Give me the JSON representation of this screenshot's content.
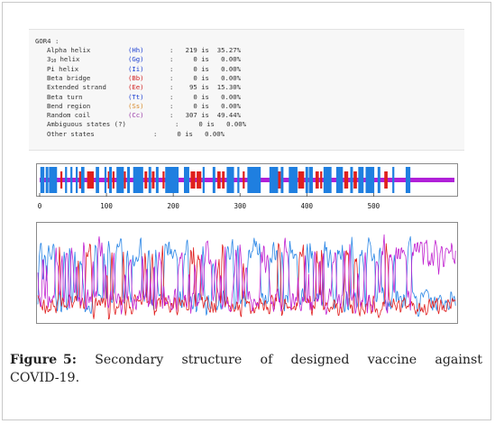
{
  "gor": {
    "title": "GOR4 :",
    "rows": [
      {
        "name": "Alpha helix",
        "code": "(Hh)",
        "stats": ":   219 is  35.27%"
      },
      {
        "name": "helix",
        "code": "(Gg)",
        "stats": ":     0 is   0.00%"
      },
      {
        "name": "Pi helix",
        "code": "(Ii)",
        "stats": ":     0 is   0.00%"
      },
      {
        "name": "Beta bridge",
        "code": "(Bb)",
        "stats": ":     0 is   0.00%"
      },
      {
        "name": "Extended strand",
        "code": "(Ee)",
        "stats": ":    95 is  15.30%"
      },
      {
        "name": "Beta turn",
        "code": "(Tt)",
        "stats": ":     0 is   0.00%"
      },
      {
        "name": "Bend region",
        "code": "(Ss)",
        "stats": ":     0 is   0.00%"
      },
      {
        "name": "Random coil",
        "code": "(Cc)",
        "stats": ":   307 is  49.44%"
      },
      {
        "name": "Ambiguous states (?)",
        "code": "",
        "stats": ":     0 is   0.00%"
      },
      {
        "name": "Other states",
        "code": "",
        "stats": ":     0 is   0.00%"
      }
    ],
    "helix310_prefix": "3",
    "helix310_sub": "10"
  },
  "track": {
    "ticks": [
      "0",
      "100",
      "200",
      "300",
      "400",
      "500"
    ],
    "tick_values": [
      0,
      100,
      200,
      300,
      400,
      500
    ],
    "length": 621,
    "helix_segments": [
      [
        1,
        6
      ],
      [
        9,
        12
      ],
      [
        14,
        25
      ],
      [
        38,
        40
      ],
      [
        46,
        48
      ],
      [
        54,
        56
      ],
      [
        62,
        66
      ],
      [
        84,
        88
      ],
      [
        97,
        99
      ],
      [
        104,
        107
      ],
      [
        115,
        125
      ],
      [
        131,
        134
      ],
      [
        140,
        154
      ],
      [
        163,
        166
      ],
      [
        174,
        177
      ],
      [
        188,
        207
      ],
      [
        216,
        223
      ],
      [
        244,
        246
      ],
      [
        259,
        262
      ],
      [
        280,
        290
      ],
      [
        296,
        298
      ],
      [
        311,
        330
      ],
      [
        344,
        356
      ],
      [
        361,
        364
      ],
      [
        373,
        385
      ],
      [
        398,
        401
      ],
      [
        403,
        408
      ],
      [
        425,
        436
      ],
      [
        444,
        453
      ],
      [
        465,
        468
      ],
      [
        477,
        484
      ],
      [
        488,
        500
      ],
      [
        506,
        509
      ],
      [
        528,
        530
      ],
      [
        548,
        554
      ]
    ],
    "strand_segments": [
      [
        31,
        33
      ],
      [
        59,
        61
      ],
      [
        71,
        80
      ],
      [
        102,
        103
      ],
      [
        109,
        111
      ],
      [
        126,
        128
      ],
      [
        157,
        160
      ],
      [
        168,
        171
      ],
      [
        184,
        186
      ],
      [
        226,
        232
      ],
      [
        235,
        241
      ],
      [
        266,
        270
      ],
      [
        273,
        276
      ],
      [
        304,
        306
      ],
      [
        356,
        360
      ],
      [
        387,
        395
      ],
      [
        413,
        417
      ],
      [
        420,
        422
      ],
      [
        456,
        461
      ],
      [
        470,
        474
      ],
      [
        516,
        520
      ]
    ],
    "colors": {
      "helix": "#1f7fe0",
      "strand": "#e0201c",
      "coil": "#b020d8"
    }
  },
  "profile": {
    "series_colors": {
      "helix": "#2a86e6",
      "strand": "#e01e1e",
      "coil": "#c020d0"
    }
  },
  "caption": {
    "label": "Figure 5:",
    "text": "Secondary structure of designed vaccine against COVID-19."
  }
}
